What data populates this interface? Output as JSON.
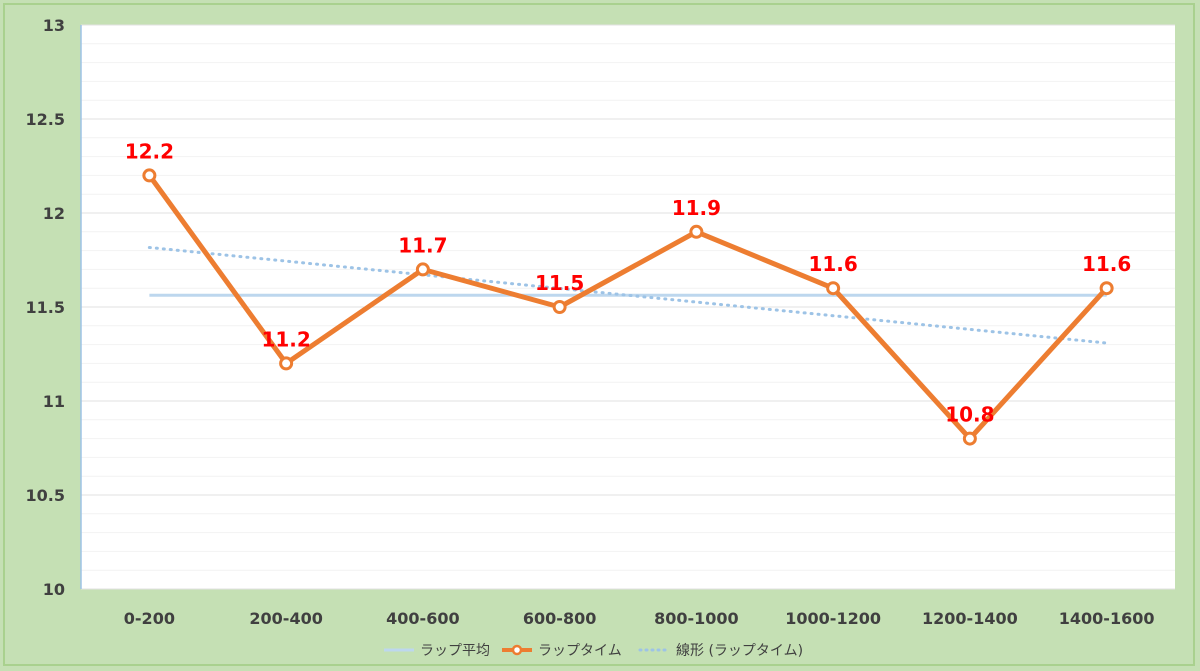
{
  "chart_data": {
    "type": "line",
    "categories": [
      "0-200",
      "200-400",
      "400-600",
      "600-800",
      "800-1000",
      "1000-1200",
      "1200-1400",
      "1400-1600"
    ],
    "series": [
      {
        "name": "ラップ平均",
        "values": [
          11.5625,
          11.5625,
          11.5625,
          11.5625,
          11.5625,
          11.5625,
          11.5625,
          11.5625
        ],
        "color": "#bdd7ee",
        "style": "solid",
        "markers": false
      },
      {
        "name": "ラップタイム",
        "values": [
          12.2,
          11.2,
          11.7,
          11.5,
          11.9,
          11.6,
          10.8,
          11.6
        ],
        "color": "#ed7d31",
        "style": "solid",
        "markers": true,
        "data_labels": [
          "12.2",
          "11.2",
          "11.7",
          "11.5",
          "11.9",
          "11.6",
          "10.8",
          "11.6"
        ],
        "data_label_color": "#ff0000"
      },
      {
        "name": "線形 (ラップタイム)",
        "values": [
          11.8167,
          11.744,
          11.6714,
          11.5988,
          11.5262,
          11.4536,
          11.381,
          11.3083
        ],
        "color": "#9dc3e6",
        "style": "dotted",
        "markers": false
      }
    ],
    "yticks": [
      "13",
      "12.5",
      "12",
      "11.5",
      "11",
      "10.5",
      "10"
    ],
    "ylim": [
      10,
      13
    ],
    "minor_gridlines": true,
    "grid": true,
    "legend_position": "bottom",
    "title": "",
    "xlabel": "",
    "ylabel": ""
  }
}
